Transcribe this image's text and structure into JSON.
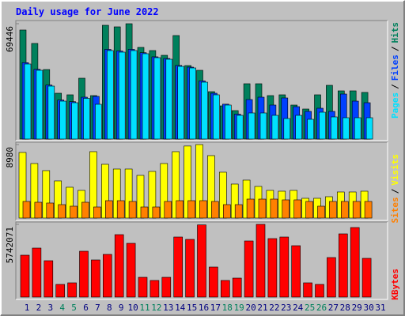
{
  "chart_data": [
    {
      "type": "bar",
      "title": "Daily usage for June 2022",
      "ylim": [
        0,
        69446
      ],
      "yticks": [
        69446
      ],
      "legend_separator": "/",
      "series": [
        {
          "name": "Hits",
          "color": "#00805c",
          "values": [
            65650,
            57560,
            41860,
            27590,
            26640,
            36630,
            26160,
            68500,
            67550,
            69446,
            55180,
            53280,
            50420,
            62320,
            44240,
            41390,
            28540,
            19980,
            17130,
            33300,
            33300,
            26160,
            26640,
            20460,
            18080,
            26640,
            32350,
            29020,
            29020,
            28070,
            null
          ]
        },
        {
          "name": "Files",
          "color": "#0040ff",
          "values": [
            46000,
            42000,
            32500,
            23500,
            22500,
            25210,
            25690,
            54000,
            53000,
            54000,
            52000,
            49500,
            48500,
            44300,
            43300,
            35000,
            27590,
            21000,
            15000,
            23790,
            25210,
            20460,
            24740,
            19500,
            16650,
            18550,
            16650,
            27110,
            22830,
            21880,
            null
          ]
        },
        {
          "name": "Pages",
          "color": "#00e0ff",
          "values": [
            45190,
            41390,
            31870,
            22830,
            21880,
            24500,
            20930,
            53280,
            52330,
            53280,
            51380,
            49000,
            48050,
            43760,
            42810,
            34250,
            26640,
            20460,
            14270,
            15700,
            15700,
            14270,
            12370,
            14270,
            11890,
            16170,
            13320,
            12840,
            12840,
            12840,
            null
          ]
        }
      ]
    },
    {
      "type": "bar",
      "ylim": [
        0,
        8980
      ],
      "yticks": [
        8980
      ],
      "legend_separator": "/",
      "series": [
        {
          "name": "Visits",
          "color": "#ffff00",
          "values": [
            8018,
            6665,
            5796,
            4540,
            3767,
            3381,
            8114,
            6569,
            5989,
            5989,
            5216,
            5699,
            6665,
            8114,
            8800,
            8980,
            7631,
            5603,
            4154,
            4637,
            3864,
            3381,
            3284,
            3381,
            2415,
            2415,
            2608,
            3188,
            3188,
            3284,
            null
          ]
        },
        {
          "name": "Sites",
          "color": "#ff8000",
          "values": [
            2029,
            1932,
            1836,
            1642,
            1449,
            1932,
            1352,
            2125,
            2125,
            2029,
            1352,
            1352,
            2029,
            2125,
            2125,
            2125,
            2029,
            1642,
            1642,
            2318,
            2318,
            2318,
            2222,
            2222,
            2029,
            1449,
            2029,
            2029,
            2029,
            2029,
            null
          ]
        }
      ]
    },
    {
      "type": "bar",
      "ylim": [
        0,
        5742071
      ],
      "yticks": [
        5742071
      ],
      "categories": [
        "1",
        "2",
        "3",
        "4",
        "5",
        "6",
        "7",
        "8",
        "9",
        "10",
        "11",
        "12",
        "13",
        "14",
        "15",
        "16",
        "17",
        "18",
        "19",
        "20",
        "21",
        "22",
        "23",
        "24",
        "25",
        "26",
        "27",
        "28",
        "29",
        "30",
        "31"
      ],
      "category_colors": [
        "#000080",
        "#000080",
        "#000080",
        "#00805c",
        "#00805c",
        "#000080",
        "#000080",
        "#000080",
        "#000080",
        "#000080",
        "#00805c",
        "#00805c",
        "#000080",
        "#000080",
        "#000080",
        "#000080",
        "#000080",
        "#00805c",
        "#00805c",
        "#000080",
        "#000080",
        "#000080",
        "#000080",
        "#000080",
        "#00805c",
        "#00805c",
        "#000080",
        "#000080",
        "#000080",
        "#000080",
        "#000080"
      ],
      "series": [
        {
          "name": "KBytes",
          "color": "#ff0000",
          "values": [
            3307940,
            3869670,
            2871040,
            998620,
            1123450,
            3620010,
            2933460,
            3370360,
            4930710,
            4244150,
            1560350,
            1310690,
            1560350,
            4743460,
            4556220,
            5700000,
            2371730,
            1310690,
            1497940,
            4431390,
            5742071,
            4618640,
            4743460,
            4056910,
            1123450,
            998620,
            3120700,
            4993120,
            5492430,
            3058290,
            null
          ]
        }
      ]
    }
  ]
}
